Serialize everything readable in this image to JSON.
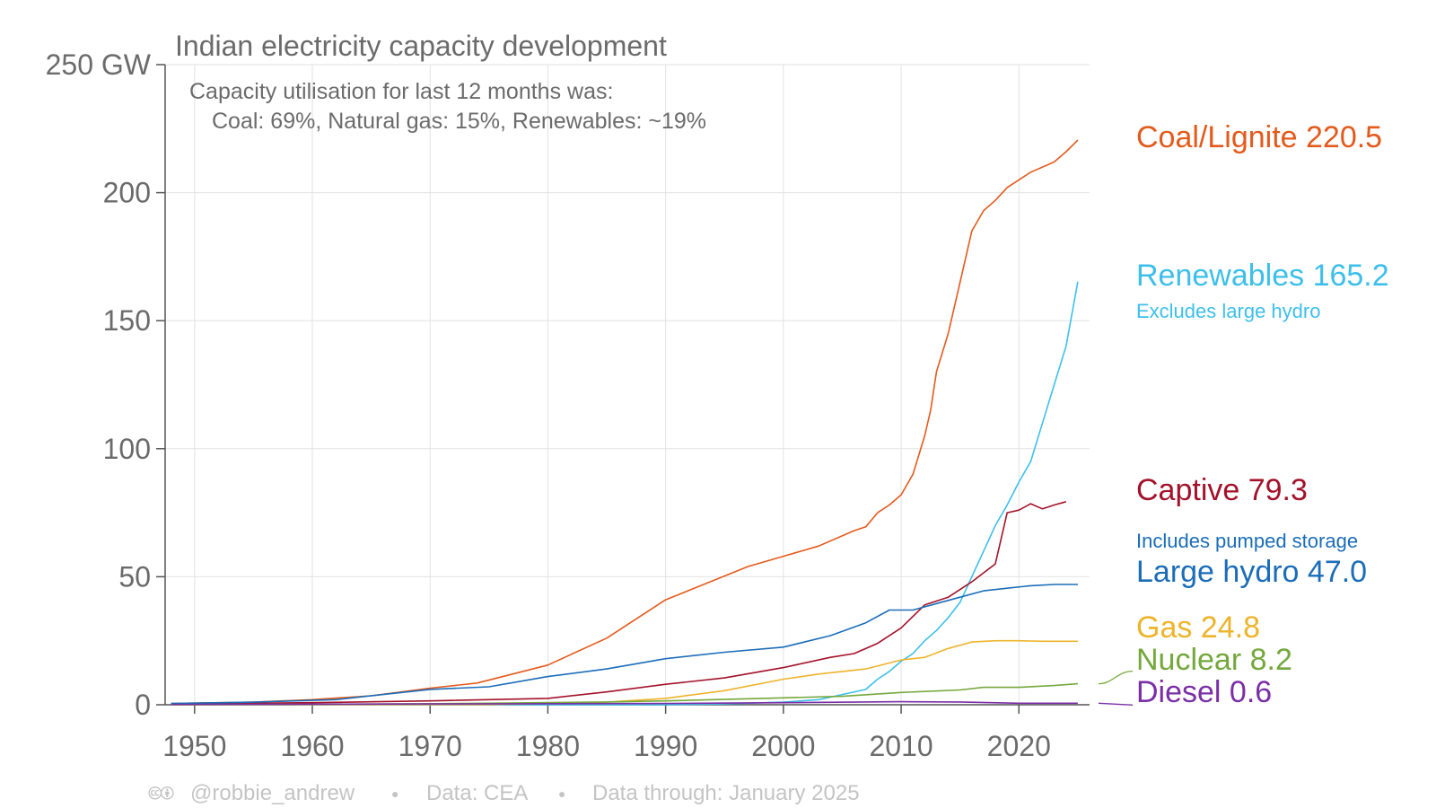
{
  "chart_data": {
    "type": "line",
    "title": "Indian electricity capacity development",
    "annotation_line1": "Capacity utilisation for last 12 months was:",
    "annotation_line2": "Coal: 69%, Natural gas: 15%, Renewables: ~19%",
    "y_unit": "GW",
    "y_ticks": [
      0,
      50,
      100,
      150,
      200,
      250
    ],
    "y_tick_labels": [
      "0",
      "50",
      "100",
      "150",
      "200",
      "250 GW"
    ],
    "x_ticks": [
      1950,
      1960,
      1970,
      1980,
      1990,
      2000,
      2010,
      2020
    ],
    "x_tick_labels": [
      "1950",
      "1960",
      "1970",
      "1980",
      "1990",
      "2000",
      "2010",
      "2020"
    ],
    "xlim": [
      1947.5,
      2026.0
    ],
    "ylim": [
      0,
      250
    ],
    "grid": true,
    "legend_placement": "right, direct labels at line ends",
    "series": [
      {
        "name": "Coal/Lignite",
        "label_value": "220.5",
        "color": "#e35a1c",
        "points": [
          [
            1948,
            0.5
          ],
          [
            1955,
            1
          ],
          [
            1960,
            2
          ],
          [
            1965,
            3.5
          ],
          [
            1970,
            6.5
          ],
          [
            1974,
            8.5
          ],
          [
            1980,
            15.5
          ],
          [
            1985,
            26
          ],
          [
            1990,
            41
          ],
          [
            1997,
            54
          ],
          [
            2000,
            58
          ],
          [
            2003,
            62
          ],
          [
            2006,
            68
          ],
          [
            2007,
            69.5
          ],
          [
            2008,
            75
          ],
          [
            2009,
            78
          ],
          [
            2010,
            82
          ],
          [
            2011,
            90
          ],
          [
            2012,
            105
          ],
          [
            2012.5,
            115
          ],
          [
            2013,
            130
          ],
          [
            2014,
            145
          ],
          [
            2015,
            165
          ],
          [
            2016,
            185
          ],
          [
            2017,
            193
          ],
          [
            2018,
            197
          ],
          [
            2019,
            202
          ],
          [
            2020,
            205
          ],
          [
            2021,
            208
          ],
          [
            2022,
            210
          ],
          [
            2023,
            212
          ],
          [
            2024,
            216
          ],
          [
            2025,
            220.5
          ]
        ]
      },
      {
        "name": "Renewables",
        "label_value": "165.2",
        "sublabel": "Excludes large hydro",
        "color": "#3dbfea",
        "points": [
          [
            1948,
            0
          ],
          [
            1990,
            0
          ],
          [
            1995,
            0.3
          ],
          [
            2000,
            1
          ],
          [
            2003,
            2
          ],
          [
            2005,
            4
          ],
          [
            2007,
            6
          ],
          [
            2008,
            10
          ],
          [
            2009,
            13
          ],
          [
            2010,
            17
          ],
          [
            2011,
            20
          ],
          [
            2012,
            25
          ],
          [
            2013,
            29
          ],
          [
            2014,
            34
          ],
          [
            2015,
            40
          ],
          [
            2016,
            50
          ],
          [
            2017,
            60
          ],
          [
            2018,
            70
          ],
          [
            2019,
            78
          ],
          [
            2020,
            87
          ],
          [
            2021,
            95
          ],
          [
            2022,
            110
          ],
          [
            2023,
            125
          ],
          [
            2024,
            140
          ],
          [
            2025,
            165.2
          ]
        ]
      },
      {
        "name": "Captive",
        "label_value": "79.3",
        "color": "#a3122a",
        "points": [
          [
            1948,
            0.3
          ],
          [
            1960,
            0.8
          ],
          [
            1970,
            1.5
          ],
          [
            1980,
            2.5
          ],
          [
            1985,
            5
          ],
          [
            1990,
            8
          ],
          [
            1995,
            10.5
          ],
          [
            2000,
            14.5
          ],
          [
            2004,
            18.5
          ],
          [
            2006,
            20
          ],
          [
            2008,
            24
          ],
          [
            2010,
            30
          ],
          [
            2012,
            39
          ],
          [
            2014,
            42
          ],
          [
            2016,
            48
          ],
          [
            2018,
            55
          ],
          [
            2019,
            75
          ],
          [
            2020,
            76
          ],
          [
            2021,
            78.5
          ],
          [
            2022,
            76.5
          ],
          [
            2023,
            78
          ],
          [
            2024,
            79.3
          ]
        ]
      },
      {
        "name": "Large hydro",
        "label_value": "47.0",
        "sublabel": "Includes pumped storage",
        "color": "#1b6db8",
        "points": [
          [
            1948,
            0.5
          ],
          [
            1955,
            1
          ],
          [
            1962,
            2
          ],
          [
            1966,
            4
          ],
          [
            1970,
            6
          ],
          [
            1975,
            7
          ],
          [
            1980,
            11
          ],
          [
            1985,
            14
          ],
          [
            1990,
            18
          ],
          [
            1995,
            20.5
          ],
          [
            2000,
            22.5
          ],
          [
            2004,
            27
          ],
          [
            2007,
            32
          ],
          [
            2009,
            37
          ],
          [
            2011,
            37
          ],
          [
            2013,
            39.5
          ],
          [
            2015,
            42
          ],
          [
            2017,
            44.5
          ],
          [
            2019,
            45.5
          ],
          [
            2021,
            46.5
          ],
          [
            2023,
            47
          ],
          [
            2025,
            47
          ]
        ]
      },
      {
        "name": "Gas",
        "label_value": "24.8",
        "color": "#edb42b",
        "points": [
          [
            1948,
            0
          ],
          [
            1975,
            0.1
          ],
          [
            1985,
            1
          ],
          [
            1990,
            2.5
          ],
          [
            1995,
            5.5
          ],
          [
            2000,
            10
          ],
          [
            2003,
            12
          ],
          [
            2007,
            14
          ],
          [
            2010,
            17.5
          ],
          [
            2012,
            18.5
          ],
          [
            2014,
            22
          ],
          [
            2016,
            24.5
          ],
          [
            2018,
            25
          ],
          [
            2020,
            25
          ],
          [
            2022,
            24.8
          ],
          [
            2025,
            24.8
          ]
        ]
      },
      {
        "name": "Nuclear",
        "label_value": "8.2",
        "color": "#74a83c",
        "points": [
          [
            1948,
            0
          ],
          [
            1969,
            0.4
          ],
          [
            1975,
            0.6
          ],
          [
            1985,
            1.1
          ],
          [
            1990,
            1.5
          ],
          [
            2000,
            2.7
          ],
          [
            2005,
            3.3
          ],
          [
            2010,
            4.8
          ],
          [
            2015,
            5.8
          ],
          [
            2017,
            6.8
          ],
          [
            2020,
            6.8
          ],
          [
            2023,
            7.5
          ],
          [
            2025,
            8.2
          ]
        ]
      },
      {
        "name": "Diesel",
        "label_value": "0.6",
        "color": "#7b2fa6",
        "points": [
          [
            1948,
            0.1
          ],
          [
            1970,
            0.3
          ],
          [
            1990,
            0.5
          ],
          [
            2000,
            0.8
          ],
          [
            2010,
            1.2
          ],
          [
            2015,
            1.1
          ],
          [
            2020,
            0.6
          ],
          [
            2025,
            0.6
          ]
        ]
      }
    ]
  },
  "footer": {
    "cc_icons": "🅭🅯",
    "handle": "@robbie_andrew",
    "sep1": "●",
    "source": "Data: CEA",
    "sep2": "●",
    "through": "Data through: January 2025"
  }
}
